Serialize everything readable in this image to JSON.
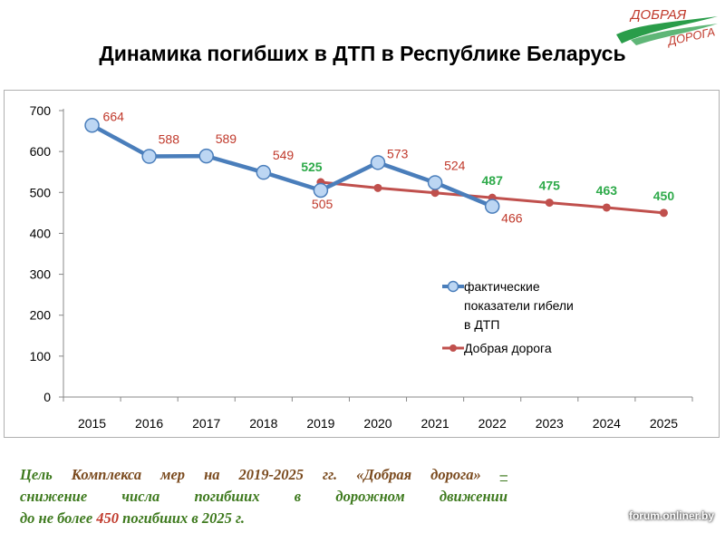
{
  "logo": {
    "line1": "ДОБРАЯ",
    "line2": "ДОРОГА",
    "color_text": "#c0392b",
    "color_swoosh": "#2a9d4a"
  },
  "chart_data": {
    "type": "line",
    "title": "Динамика погибших в ДТП в Республике Беларусь",
    "categories": [
      "2015",
      "2016",
      "2017",
      "2018",
      "2019",
      "2020",
      "2021",
      "2022",
      "2023",
      "2024",
      "2025"
    ],
    "ylim": [
      0,
      700
    ],
    "yticks": [
      0,
      100,
      200,
      300,
      400,
      500,
      600,
      700
    ],
    "grid": false,
    "legend_position": "right",
    "series": [
      {
        "name": "фактические показатели гибели в ДТП",
        "color": "#4a7ebb",
        "x": [
          "2015",
          "2016",
          "2017",
          "2018",
          "2019",
          "2020",
          "2021",
          "2022"
        ],
        "values": [
          664,
          588,
          589,
          549,
          505,
          573,
          524,
          466
        ],
        "label_color": "#c0392b"
      },
      {
        "name": "Добрая дорога",
        "color": "#c0504d",
        "x": [
          "2019",
          "2020",
          "2021",
          "2022",
          "2023",
          "2024",
          "2025"
        ],
        "values": [
          525,
          511,
          499,
          487,
          475,
          463,
          450
        ],
        "labels": [
          "525",
          "",
          "",
          "487",
          "475",
          "463",
          "450"
        ],
        "label_color": "#2eaa4a"
      }
    ]
  },
  "caption": {
    "part1": "Цель",
    "part2": "Комплекса мер на 2019-2025 гг. «Добрая дорога»",
    "dash": "–",
    "part3": "снижение числа погибших в дорожном движении",
    "part4": "до не более",
    "number": "450",
    "part5": "погибших в 2025 г."
  },
  "watermark": "forum.onliner.by"
}
